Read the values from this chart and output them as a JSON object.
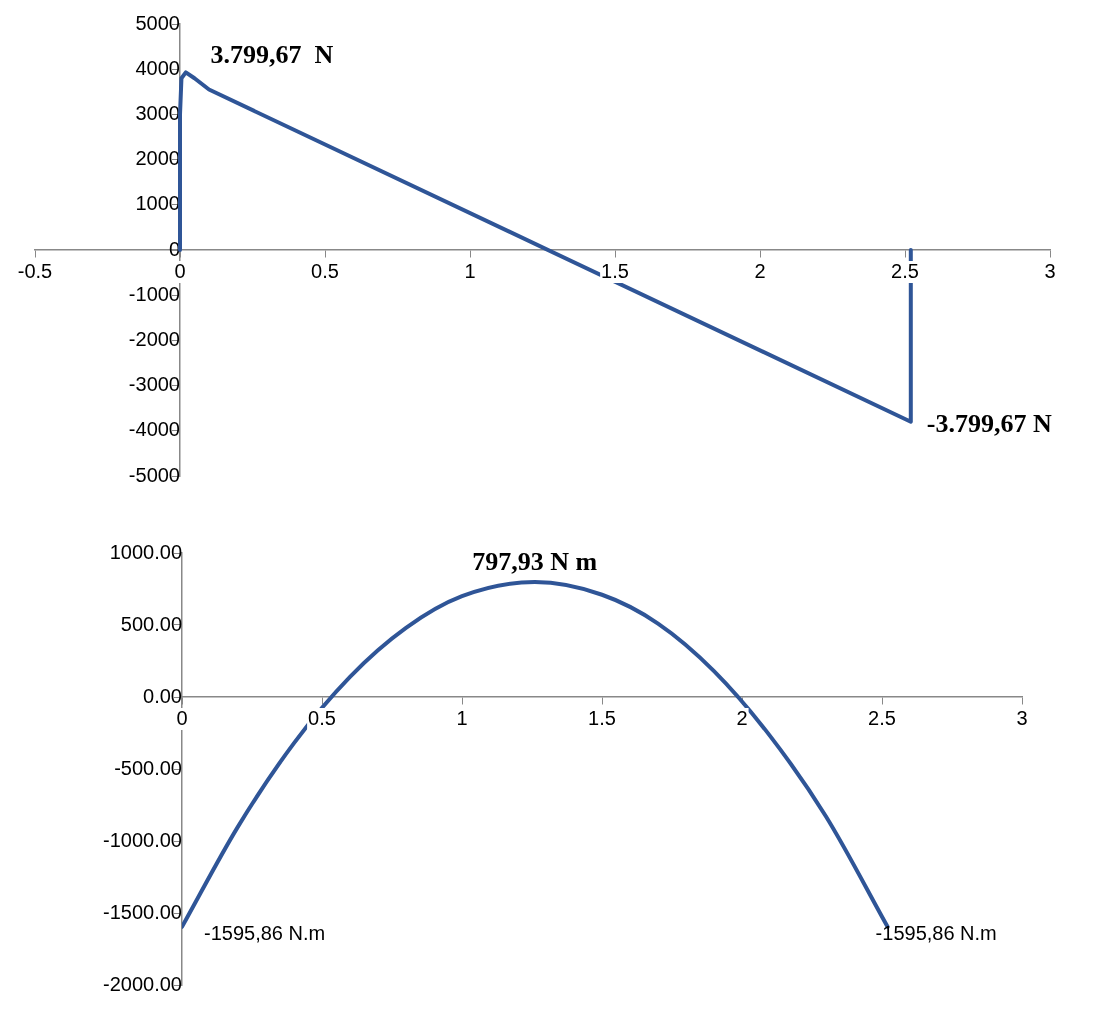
{
  "chart_data": [
    {
      "type": "line",
      "xlim": [
        -0.5,
        3
      ],
      "xticks": [
        -0.5,
        0,
        0.5,
        1,
        1.5,
        2,
        2.5,
        3
      ],
      "ylim": [
        -5000,
        5000
      ],
      "yticks": [
        -5000,
        -4000,
        -3000,
        -2000,
        -1000,
        0,
        1000,
        2000,
        3000,
        4000,
        5000
      ],
      "grid": false,
      "legend": false,
      "series": [
        {
          "color": "#2f5597",
          "x": [
            0,
            0,
            0.005,
            0.02,
            0.05,
            0.1,
            2.52,
            2.52
          ],
          "values": [
            0,
            3000,
            3800,
            3930,
            3800,
            3550,
            -3800,
            0
          ]
        }
      ],
      "annotations": [
        {
          "text": "3.799,67  N",
          "x": 0.05,
          "y": 3800
        },
        {
          "text": "-3.799,67 N",
          "x": 2.52,
          "y": -3800
        }
      ]
    },
    {
      "type": "line",
      "xlim": [
        0,
        3
      ],
      "xticks": [
        0,
        0.5,
        1,
        1.5,
        2,
        2.5,
        3
      ],
      "ylim": [
        -2000,
        1000
      ],
      "yticks": [
        {
          "value": -2000,
          "label": "-2000.00"
        },
        {
          "value": -1500,
          "label": "-1500.00"
        },
        {
          "value": -1000,
          "label": "-1000.00"
        },
        {
          "value": -500,
          "label": "-500.00"
        },
        {
          "value": 0,
          "label": "0.00"
        },
        {
          "value": 500,
          "label": "500.00"
        },
        {
          "value": 1000,
          "label": "1000.00"
        }
      ],
      "grid": false,
      "legend": false,
      "series": [
        {
          "color": "#2f5597",
          "x": [
            0,
            0.2,
            0.4,
            0.6,
            0.8,
            1,
            1.26,
            1.5,
            1.7,
            1.9,
            2.1,
            2.3,
            2.52
          ],
          "values": [
            -1596,
            -900,
            -320,
            140,
            480,
            700,
            798,
            710,
            510,
            180,
            -270,
            -830,
            -1596
          ]
        }
      ],
      "annotations": [
        {
          "text": "797,93 N m",
          "x": 1.26,
          "y": 798
        },
        {
          "text": "-1595,86 N.m",
          "x": 0,
          "y": -1596
        },
        {
          "text": "-1595,86 N.m",
          "x": 2.52,
          "y": -1596
        }
      ]
    }
  ]
}
